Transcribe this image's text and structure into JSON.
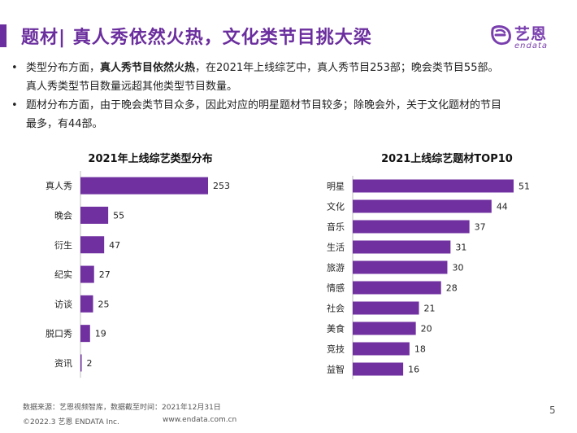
{
  "header": {
    "title": "题材| 真人秀依然火热，文化类节目挑大梁"
  },
  "logo": {
    "cn": "艺恩",
    "en": "endata",
    "color": "#7a3fae"
  },
  "bullets": [
    {
      "pre": "类型分布方面，",
      "bold": "真人秀节目依然火热",
      "post": "，在2021年上线综艺中，真人秀节目253部；晚会类节目55部。",
      "line2": "真人秀类型节目数量远超其他类型节目数量。"
    },
    {
      "pre": "题材分布方面，由于晚会类节目众多，因此对应的明星题材节目较多；除晚会外，关于文化题材的节目",
      "line2": "最多，有44部。"
    }
  ],
  "bar_color": "#7030a0",
  "chart_data": [
    {
      "type": "bar",
      "orientation": "horizontal",
      "title": "2021年上线综艺类型分布",
      "categories": [
        "真人秀",
        "晚会",
        "衍生",
        "纪实",
        "访谈",
        "脱口秀",
        "资讯"
      ],
      "values": [
        253,
        55,
        47,
        27,
        25,
        19,
        2
      ],
      "xlim": [
        0,
        253
      ],
      "grid": false,
      "legend": "none"
    },
    {
      "type": "bar",
      "orientation": "horizontal",
      "title": "2021上线综艺题材TOP10",
      "categories": [
        "明星",
        "文化",
        "音乐",
        "生活",
        "旅游",
        "情感",
        "社会",
        "美食",
        "竞技",
        "益智"
      ],
      "values": [
        51,
        44,
        37,
        31,
        30,
        28,
        21,
        20,
        18,
        16
      ],
      "xlim": [
        0,
        51
      ],
      "grid": false,
      "legend": "none"
    }
  ],
  "footer": {
    "source": "数据来源：艺恩视频智库，数据截至时间：2021年12月31日",
    "copyright": "©2022.3 艺恩 ENDATA Inc.",
    "website": "www.endata.com.cn",
    "page": "5"
  }
}
